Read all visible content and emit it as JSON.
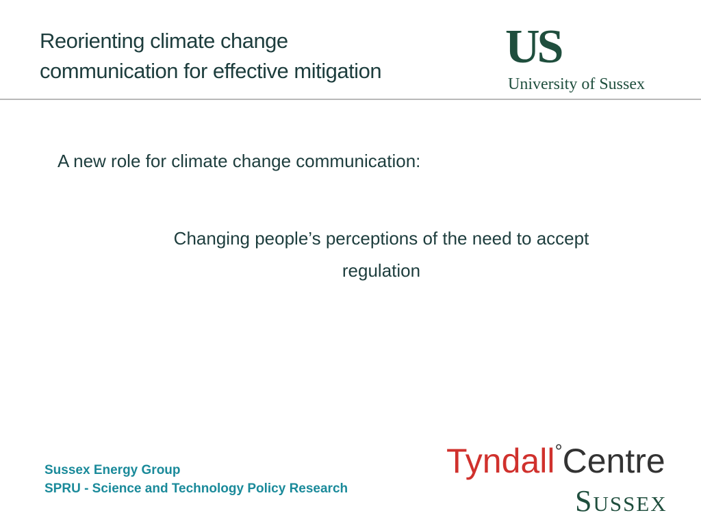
{
  "header": {
    "title_lines": [
      "Reorienting climate change",
      "communication for effective mitigation"
    ],
    "logo_mark": "US",
    "logo_name": "University of Sussex"
  },
  "body": {
    "intro": "A new role for climate change communication:",
    "point_lines": [
      "Changing people’s perceptions of the need to accept",
      "regulation"
    ]
  },
  "footer": {
    "lines": [
      "Sussex Energy Group",
      "SPRU - Science and Technology Policy Research"
    ],
    "tyndall": "Tyndall",
    "degree": "°",
    "centre": "Centre",
    "sussex": "Sussex"
  }
}
